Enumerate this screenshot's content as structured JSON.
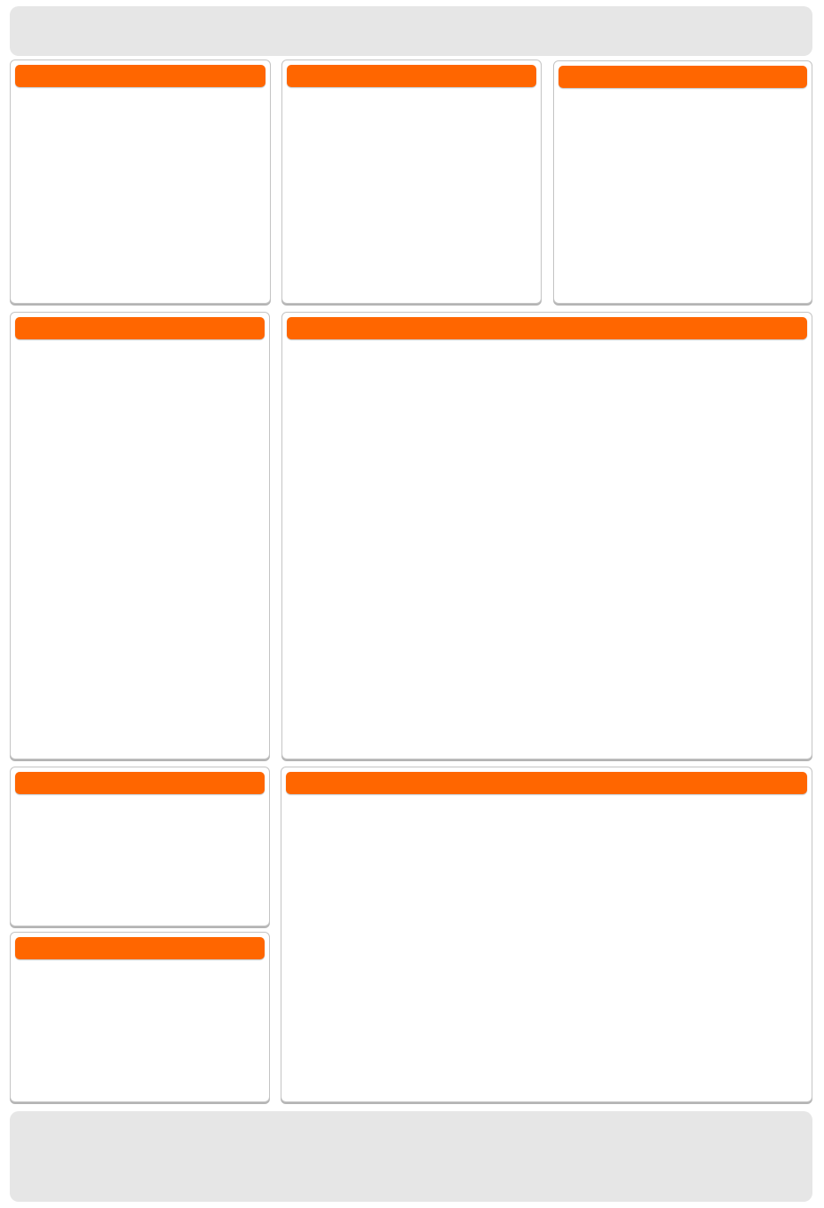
{
  "theme": {
    "accent": "#ff6600",
    "bar_background": "#e6e6e6",
    "panel_border": "#c4c4c4",
    "page_background": "#ffffff"
  },
  "header_bar": {
    "text": ""
  },
  "footer_bar": {
    "text": ""
  },
  "panels": {
    "top_left": {
      "title": ""
    },
    "top_center": {
      "title": ""
    },
    "top_right": {
      "title": ""
    },
    "middle_left": {
      "title": ""
    },
    "middle_main": {
      "title": ""
    },
    "bottom_left_upper": {
      "title": ""
    },
    "bottom_left_lower": {
      "title": ""
    },
    "bottom_main": {
      "title": ""
    }
  }
}
